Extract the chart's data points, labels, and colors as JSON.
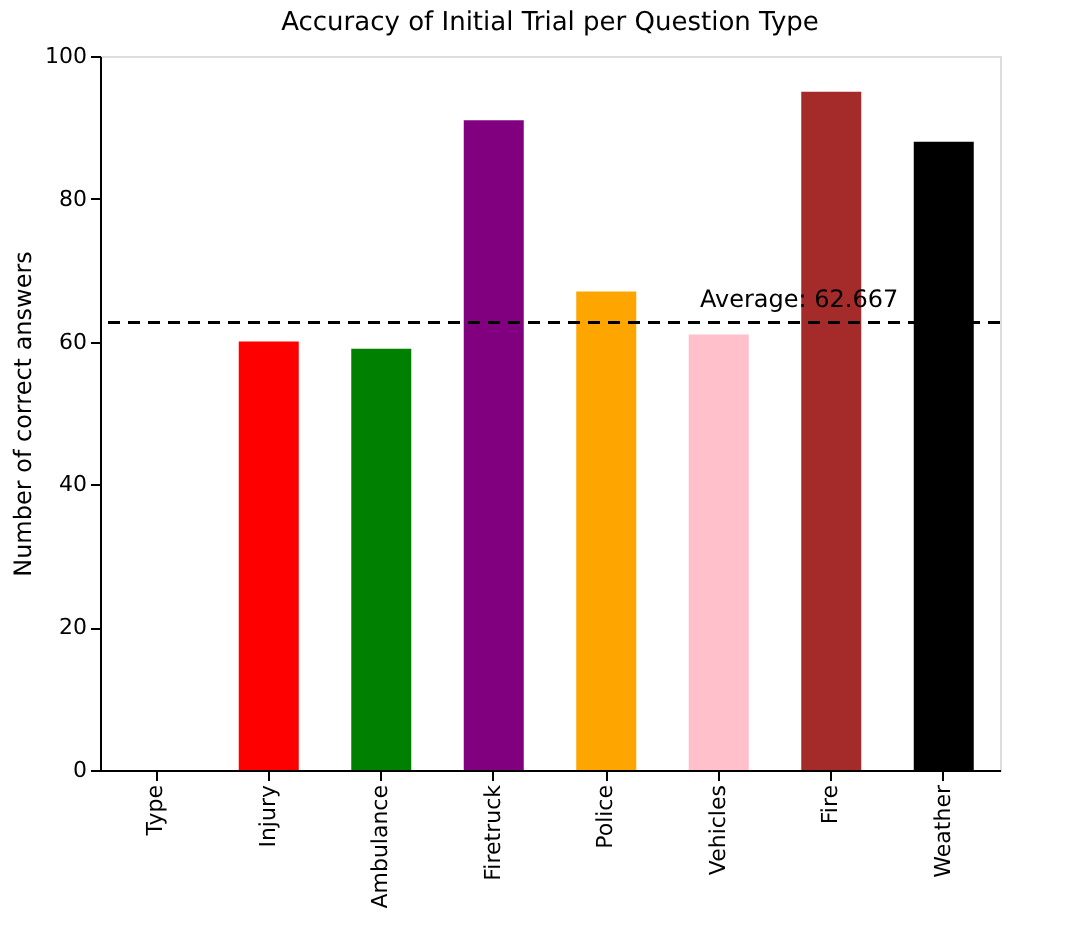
{
  "chart_data": {
    "type": "bar",
    "title": "Accuracy of Initial Trial per Question Type",
    "ylabel": "Number of correct answers",
    "categories": [
      "Type",
      "Injury",
      "Ambulance",
      "Firetruck",
      "Police",
      "Vehicles",
      "Fire",
      "Weather"
    ],
    "values": [
      0,
      60,
      59,
      91,
      67,
      61,
      95,
      88
    ],
    "colors": [
      "#1f77b4",
      "#ff0000",
      "#008000",
      "#800080",
      "#ffa500",
      "#ffc0cb",
      "#a52a2a",
      "#000000"
    ],
    "ylim": [
      0,
      100
    ],
    "yticks": [
      0,
      20,
      40,
      60,
      80,
      100
    ],
    "grid": false,
    "ref_lines": [
      {
        "axis": "y",
        "value": 62.667,
        "label": "Average: 62.667",
        "color": "#000000",
        "line_style": "dashed"
      }
    ]
  }
}
